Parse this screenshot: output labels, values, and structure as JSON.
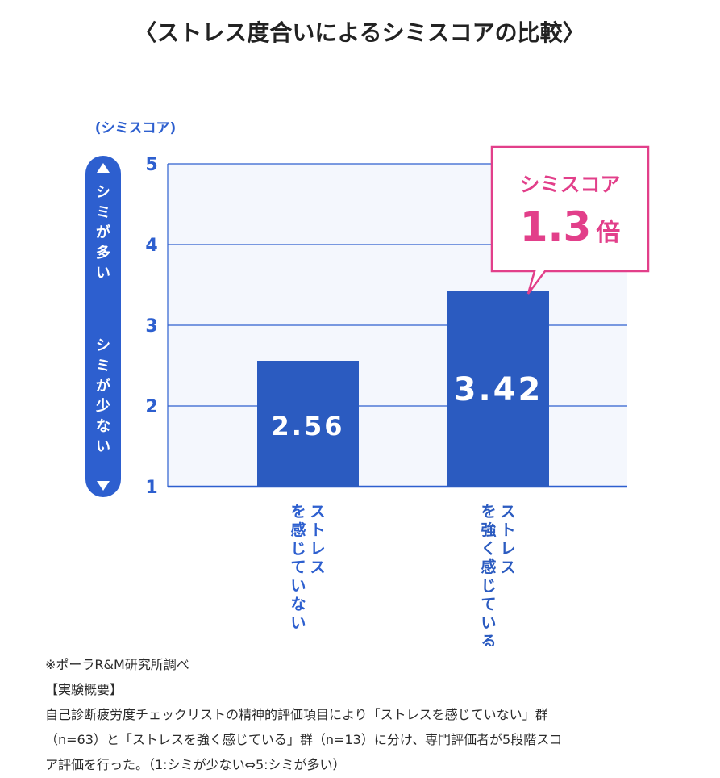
{
  "chart_data": {
    "type": "bar",
    "title": "〈ストレス度合いによるシミスコアの比較〉",
    "ylabel": "(シミスコア)",
    "ylim": [
      1,
      5
    ],
    "yticks": [
      "1",
      "2",
      "3",
      "4",
      "5"
    ],
    "categories": [
      "ストレスを感じていない",
      "ストレスを強く感じている"
    ],
    "values": [
      2.56,
      3.42
    ],
    "value_labels": [
      "2.56",
      "3.42"
    ],
    "axis_indicator": {
      "top": "シミが多い",
      "bottom": "シミが少ない"
    },
    "callout": {
      "label": "シミスコア",
      "value": "1.3",
      "unit": "倍"
    },
    "grid": true,
    "colors": {
      "bar": "#2b5bc0",
      "axis": "#2d5fcf",
      "callout": "#e23f8a",
      "plot_bg": "#f4f7fd"
    }
  },
  "footnote": {
    "source": "※ポーラR&M研究所調べ",
    "heading": "【実験概要】",
    "lines": [
      "自己診断疲労度チェックリストの精神的評価項目により「ストレスを感じていない」群",
      "（n=63）と「ストレスを強く感じている」群（n=13）に分け、専門評価者が5段階スコ",
      "ア評価を行った。（1:シミが少ない⇔5:シミが多い）"
    ]
  }
}
